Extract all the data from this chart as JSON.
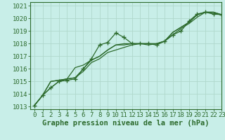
{
  "xlabel": "Graphe pression niveau de la mer (hPa)",
  "background_color": "#c8eee8",
  "grid_color": "#b0d8cc",
  "line_color": "#2d6b2d",
  "xlim": [
    -0.5,
    23
  ],
  "ylim": [
    1012.8,
    1021.3
  ],
  "yticks": [
    1013,
    1014,
    1015,
    1016,
    1017,
    1018,
    1019,
    1020,
    1021
  ],
  "xticks": [
    0,
    1,
    2,
    3,
    4,
    5,
    6,
    7,
    8,
    9,
    10,
    11,
    12,
    13,
    14,
    15,
    16,
    17,
    18,
    19,
    20,
    21,
    22,
    23
  ],
  "series": [
    [
      1013.1,
      1013.9,
      1014.5,
      1015.0,
      1015.1,
      1015.2,
      1016.0,
      1016.8,
      1017.9,
      1018.1,
      1018.85,
      1018.5,
      1018.0,
      1018.0,
      1018.0,
      1017.9,
      1018.2,
      1018.7,
      1019.0,
      1019.8,
      1020.35,
      1020.5,
      1020.35,
      1020.3
    ],
    [
      1013.1,
      1013.9,
      1015.0,
      1015.1,
      1015.2,
      1015.3,
      1015.8,
      1016.5,
      1016.8,
      1017.3,
      1017.5,
      1017.7,
      1017.9,
      1018.0,
      1018.0,
      1018.0,
      1018.2,
      1018.7,
      1019.2,
      1019.6,
      1020.1,
      1020.5,
      1020.5,
      1020.3
    ],
    [
      1013.1,
      1013.9,
      1015.0,
      1015.1,
      1015.2,
      1016.1,
      1016.3,
      1016.7,
      1017.0,
      1017.5,
      1017.9,
      1017.9,
      1018.0,
      1018.0,
      1018.0,
      1018.0,
      1018.2,
      1018.9,
      1019.3,
      1019.7,
      1020.3,
      1020.5,
      1020.4,
      1020.3
    ],
    [
      1013.1,
      1013.9,
      1014.5,
      1015.0,
      1015.2,
      1015.3,
      1016.0,
      1016.7,
      1017.0,
      1017.5,
      1017.9,
      1018.0,
      1018.0,
      1018.0,
      1017.9,
      1018.0,
      1018.2,
      1018.9,
      1019.3,
      1019.7,
      1020.3,
      1020.5,
      1020.5,
      1020.3
    ]
  ],
  "label_fontsize": 7.5,
  "tick_fontsize": 6.5
}
